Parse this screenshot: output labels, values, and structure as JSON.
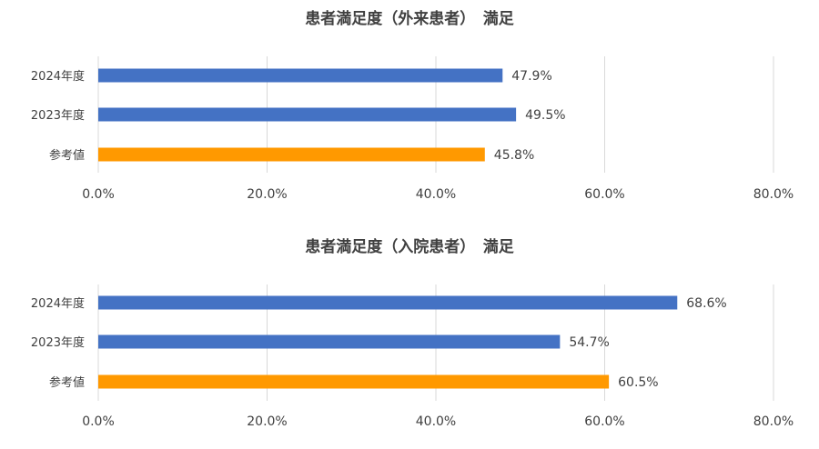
{
  "colors": {
    "current": "#4472C4",
    "reference": "#FF9900",
    "grid": "#D9D9D9",
    "text": "#404040"
  },
  "chart_data": [
    {
      "type": "bar",
      "orientation": "horizontal",
      "title": "患者満足度（外来患者）　満足",
      "categories": [
        "2024年度",
        "2023年度",
        "参考値"
      ],
      "values": [
        47.9,
        49.5,
        45.8
      ],
      "value_labels": [
        "47.9%",
        "49.5%",
        "45.8%"
      ],
      "bar_colors": [
        "#4472C4",
        "#4472C4",
        "#FF9900"
      ],
      "xlim": [
        0,
        80
      ],
      "x_ticks": [
        "0.0%",
        "20.0%",
        "40.0%",
        "60.0%",
        "80.0%"
      ],
      "grid": true,
      "legend": false
    },
    {
      "type": "bar",
      "orientation": "horizontal",
      "title": "患者満足度（入院患者）　満足",
      "categories": [
        "2024年度",
        "2023年度",
        "参考値"
      ],
      "values": [
        68.6,
        54.7,
        60.5
      ],
      "value_labels": [
        "68.6%",
        "54.7%",
        "60.5%"
      ],
      "bar_colors": [
        "#4472C4",
        "#4472C4",
        "#FF9900"
      ],
      "xlim": [
        0,
        80
      ],
      "x_ticks": [
        "0.0%",
        "20.0%",
        "40.0%",
        "60.0%",
        "80.0%"
      ],
      "grid": true,
      "legend": false
    }
  ]
}
